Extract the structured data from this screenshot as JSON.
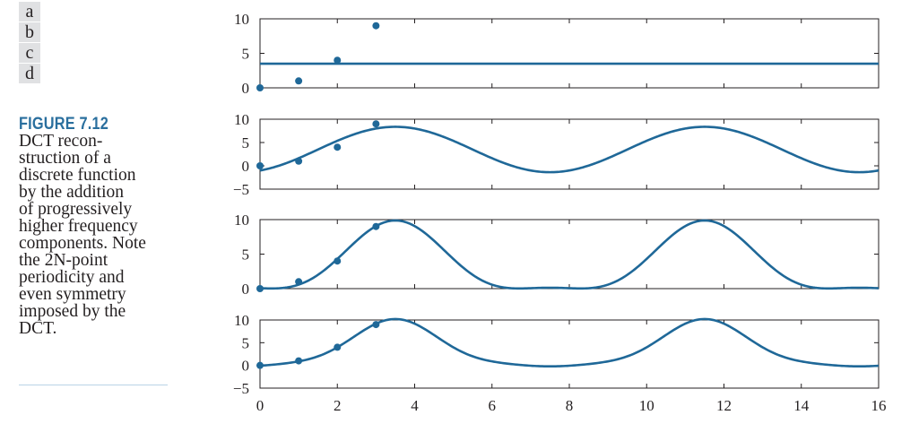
{
  "panel_labels": [
    "a",
    "b",
    "c",
    "d"
  ],
  "figure_title": "FIGURE 7.12",
  "caption_lines": [
    "DCT recon-",
    "struction of a",
    "discrete function",
    "by the addition",
    "of progressively",
    "higher frequency",
    "components. Note",
    "the 2N-point",
    "periodicity and",
    "even symmetry",
    "imposed by the",
    "DCT."
  ],
  "colors": {
    "series": "#1f6898",
    "axes": "#231f20",
    "panel_label_bg": "#e0e1e3",
    "title": "#2a6f9e"
  },
  "chart_data": [
    {
      "type": "line",
      "panel": "a",
      "xlim": [
        0,
        16
      ],
      "ylim": [
        0,
        10
      ],
      "yticks": [
        0,
        5,
        10
      ],
      "xticks": [
        0,
        2,
        4,
        6,
        8,
        10,
        12,
        14,
        16
      ],
      "show_x_tick_labels": false,
      "points": {
        "x": [
          0,
          1,
          2,
          3
        ],
        "y": [
          0,
          1,
          4,
          9
        ]
      },
      "curve": {
        "mean": 3.5,
        "terms": []
      }
    },
    {
      "type": "line",
      "panel": "b",
      "xlim": [
        0,
        16
      ],
      "ylim": [
        -5,
        10
      ],
      "yticks": [
        -5,
        0,
        5,
        10
      ],
      "xticks": [
        0,
        2,
        4,
        6,
        8,
        10,
        12,
        14,
        16
      ],
      "show_x_tick_labels": false,
      "points": {
        "x": [
          0,
          1,
          2,
          3
        ],
        "y": [
          0,
          1,
          4,
          9
        ]
      },
      "curve": {
        "mean": 3.5,
        "terms": [
          {
            "u": 1,
            "amp": -4.87
          }
        ]
      }
    },
    {
      "type": "line",
      "panel": "c",
      "xlim": [
        0,
        16
      ],
      "ylim": [
        0,
        10
      ],
      "yticks": [
        0,
        5,
        10
      ],
      "xticks": [
        0,
        2,
        4,
        6,
        8,
        10,
        12,
        14,
        16
      ],
      "show_x_tick_labels": false,
      "points": {
        "x": [
          0,
          1,
          2,
          3
        ],
        "y": [
          0,
          1,
          4,
          9
        ]
      },
      "curve": {
        "mean": 3.5,
        "terms": [
          {
            "u": 1,
            "amp": -4.87
          },
          {
            "u": 2,
            "amp": 1.5
          }
        ]
      }
    },
    {
      "type": "line",
      "panel": "d",
      "xlim": [
        0,
        16
      ],
      "ylim": [
        -5,
        10
      ],
      "yticks": [
        -5,
        0,
        5,
        10
      ],
      "xticks": [
        0,
        2,
        4,
        6,
        8,
        10,
        12,
        14,
        16
      ],
      "show_x_tick_labels": true,
      "points": {
        "x": [
          0,
          1,
          2,
          3
        ],
        "y": [
          0,
          1,
          4,
          9
        ]
      },
      "curve": {
        "mean": 3.5,
        "terms": [
          {
            "u": 1,
            "amp": -4.87
          },
          {
            "u": 2,
            "amp": 1.5
          },
          {
            "u": 3,
            "amp": -0.34
          }
        ]
      }
    }
  ]
}
